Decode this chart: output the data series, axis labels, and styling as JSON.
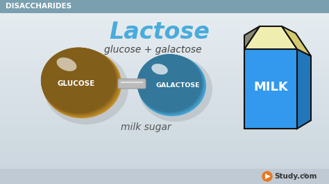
{
  "title": "Lactose",
  "subtitle": "glucose + galactose",
  "label_below": "milk sugar",
  "header": "DISACCHARIDES",
  "glucose_color": "#C8922A",
  "galactose_color": "#4AABDC",
  "glucose_label": "GLUCOSE",
  "galactose_label": "GALACTOSE",
  "milk_label": "MILK",
  "bg_top_color": "#E8EEF2",
  "bg_bottom_color": "#C8D4DC",
  "header_bg_color": "#7AA0B0",
  "header_text_color": "#FFFFFF",
  "title_color": "#4AABDC",
  "subtitle_color": "#444444",
  "label_color": "#555555",
  "carton_blue": "#3399EE",
  "carton_outline": "#111111",
  "carton_top_color": "#F0EDB0",
  "carton_side_color": "#2277BB",
  "milk_text_color": "#FFFFFF",
  "study_orange": "#E87820",
  "study_text_color": "#333333",
  "bottom_bar_color": "#C0CAD4"
}
